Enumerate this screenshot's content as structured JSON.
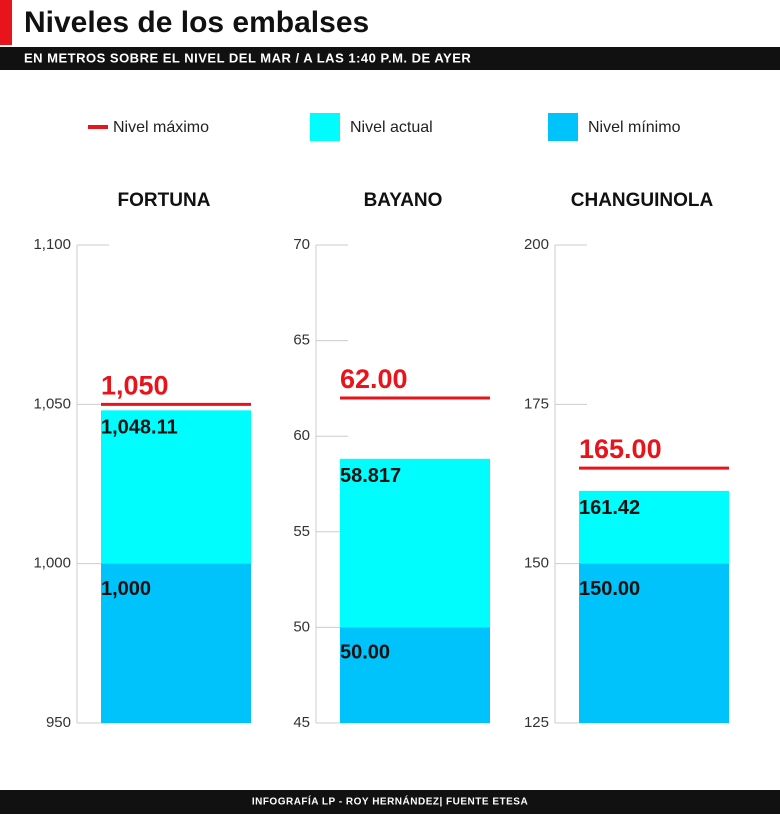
{
  "header": {
    "title": "Niveles de los embalses",
    "subtitle": "EN METROS SOBRE EL NIVEL DEL MAR / A LAS 1:40 P.M. DE AYER"
  },
  "legend": [
    {
      "name": "Nivel máximo",
      "color": "#e8141c"
    },
    {
      "name": "Nivel actual",
      "color": "#00fdfd"
    },
    {
      "name": "Nivel mínimo",
      "color": "#00c3fb"
    }
  ],
  "chart_data": [
    {
      "type": "bar",
      "title": "FORTUNA",
      "ylim": [
        950,
        1100
      ],
      "yticks": [
        950,
        {
          "value": 1000,
          "label": "1,000"
        },
        {
          "value": 1050,
          "label": "1,050"
        },
        {
          "value": 1100,
          "label": "1,100"
        }
      ],
      "values": [
        1050,
        1048.11,
        1000
      ],
      "value_labels": [
        "1,050",
        "1,048.11",
        "1,000"
      ]
    },
    {
      "type": "bar",
      "title": "BAYANO",
      "ylim": [
        45,
        70
      ],
      "yticks": [
        45,
        50,
        55,
        60,
        65,
        70
      ],
      "values": [
        62,
        58.817,
        50
      ],
      "value_labels": [
        "62.00",
        "58.817",
        "50.00"
      ]
    },
    {
      "type": "bar",
      "title": "CHANGUINOLA",
      "ylim": [
        125,
        200
      ],
      "yticks": [
        125,
        150,
        175,
        200
      ],
      "values": [
        165,
        161.42,
        150
      ],
      "value_labels": [
        "165.00",
        "161.42",
        "150.00"
      ]
    }
  ],
  "footer": {
    "credit": "INFOGRAFÍA LP - ROY HERNÁNDEZ| FUENTE ETESA"
  }
}
